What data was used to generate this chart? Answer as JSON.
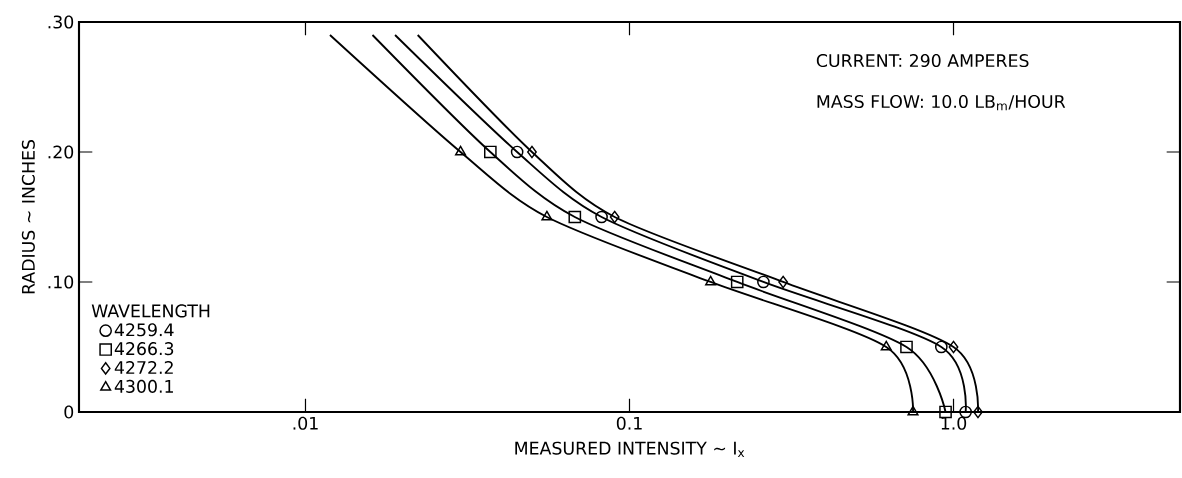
{
  "chart_data": {
    "type": "scatter",
    "xlabel": "MEASURED  INTENSITY ~ I$_{x}$",
    "ylabel": "RADIUS ~ INCHES",
    "legend_title": "WAVELENGTH",
    "legend": "bottom left",
    "log": "x",
    "xlim": [
      0.002,
      5
    ],
    "ylim": [
      0,
      0.3
    ],
    "xticks": [
      {
        "value": 0.01,
        "label": ".01"
      },
      {
        "value": 0.1,
        "label": "0.1"
      },
      {
        "value": 1,
        "label": "1.0"
      }
    ],
    "yticks": [
      {
        "value": 0,
        "label": "0"
      },
      {
        "value": 0.1,
        "label": ".10"
      },
      {
        "value": 0.2,
        "label": ".20"
      },
      {
        "value": 0.3,
        "label": ".30"
      }
    ],
    "annotations": [
      "CURRENT:  290 AMPERES",
      "MASS FLOW: 10.0 LB$_{m}$/HOUR"
    ],
    "series": [
      {
        "type": "line",
        "color": "#000000",
        "x": [
          0.0189,
          0.045,
          0.082,
          0.259,
          0.917,
          1.09
        ],
        "values": [
          0.29,
          0.2,
          0.15,
          0.1,
          0.05,
          0
        ]
      },
      {
        "type": "line",
        "color": "#000000",
        "x": [
          0.0161,
          0.0372,
          0.0678,
          0.215,
          0.716,
          0.945
        ],
        "values": [
          0.29,
          0.2,
          0.15,
          0.1,
          0.05,
          0
        ]
      },
      {
        "type": "line",
        "color": "#000000",
        "x": [
          0.0222,
          0.05,
          0.09,
          0.298,
          1.0,
          1.19
        ],
        "values": [
          0.29,
          0.2,
          0.15,
          0.1,
          0.05,
          0
        ]
      },
      {
        "type": "line",
        "color": "#000000",
        "x": [
          0.0119,
          0.0301,
          0.0556,
          0.178,
          0.62,
          0.75
        ],
        "values": [
          0.29,
          0.2,
          0.15,
          0.1,
          0.05,
          0
        ]
      },
      {
        "name": "4259.4",
        "marker": "circle",
        "color": "#000000",
        "x": [
          0.045,
          0.082,
          0.259,
          0.917,
          1.09
        ],
        "values": [
          0.2,
          0.15,
          0.1,
          0.05,
          0
        ]
      },
      {
        "name": "4266.3",
        "marker": "square",
        "color": "#000000",
        "x": [
          0.0372,
          0.0678,
          0.215,
          0.716,
          0.945
        ],
        "values": [
          0.2,
          0.15,
          0.1,
          0.05,
          0
        ]
      },
      {
        "name": "4272.2",
        "marker": "diamond",
        "color": "#000000",
        "x": [
          0.05,
          0.09,
          0.298,
          1.0,
          1.19
        ],
        "values": [
          0.2,
          0.15,
          0.1,
          0.05,
          0
        ]
      },
      {
        "name": "4300.1",
        "marker": "triangle",
        "color": "#000000",
        "x": [
          0.0301,
          0.0556,
          0.178,
          0.62,
          0.75
        ],
        "values": [
          0.2,
          0.15,
          0.1,
          0.05,
          0
        ]
      }
    ]
  }
}
